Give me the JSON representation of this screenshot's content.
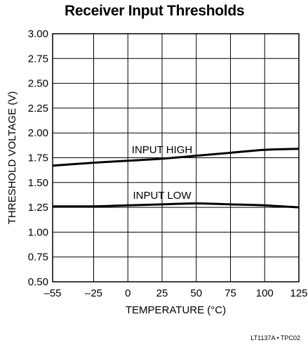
{
  "chart_data": {
    "type": "line",
    "title": "Receiver Input Thresholds",
    "xlabel": "TEMPERATURE (°C)",
    "ylabel": "THRESHOLD VOLTAGE (V)",
    "xlim": [
      -55,
      125
    ],
    "ylim": [
      0.5,
      3.0
    ],
    "xticks": [
      -55,
      -25,
      0,
      25,
      50,
      75,
      100,
      125
    ],
    "xtick_labels": [
      "–55",
      "–25",
      "0",
      "25",
      "50",
      "75",
      "100",
      "125"
    ],
    "yticks": [
      0.5,
      0.75,
      1.0,
      1.25,
      1.5,
      1.75,
      2.0,
      2.25,
      2.5,
      2.75,
      3.0
    ],
    "ytick_labels": [
      "0.50",
      "0.75",
      "1.00",
      "1.25",
      "1.50",
      "1.75",
      "2.00",
      "2.25",
      "2.50",
      "2.75",
      "3.00"
    ],
    "grid": true,
    "series": [
      {
        "name": "INPUT HIGH",
        "color": "#000000",
        "x": [
          -55,
          -25,
          0,
          25,
          50,
          75,
          100,
          125
        ],
        "y": [
          1.67,
          1.7,
          1.72,
          1.74,
          1.77,
          1.8,
          1.83,
          1.84
        ]
      },
      {
        "name": "INPUT LOW",
        "color": "#000000",
        "x": [
          -55,
          -25,
          0,
          25,
          50,
          75,
          100,
          125
        ],
        "y": [
          1.26,
          1.26,
          1.27,
          1.28,
          1.29,
          1.28,
          1.27,
          1.25
        ]
      }
    ],
    "footnote": "LT1137A • TPC02"
  }
}
